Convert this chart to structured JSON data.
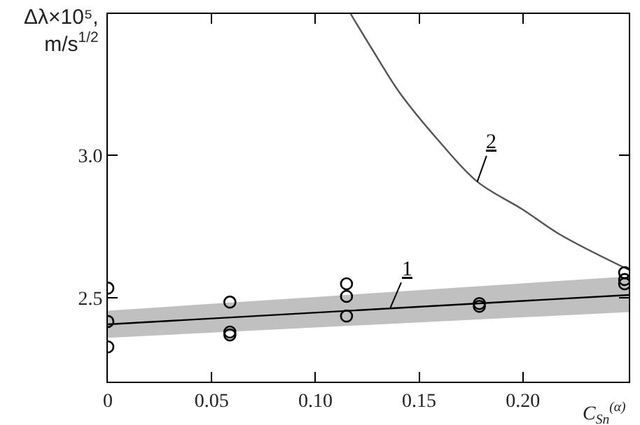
{
  "chart_data": {
    "type": "scatter",
    "xlabel": "C$_{Sn}$$^{(α)}$",
    "ylabel": "Δλ×10⁵,\nm/s$^{1/2}$",
    "xlim": [
      0,
      0.251
    ],
    "ylim": [
      2.206,
      3.495
    ],
    "xticks": [
      0,
      0.05,
      {
        "value": 0.1,
        "label": "0.10"
      },
      0.15,
      {
        "value": 0.2,
        "label": "0.20"
      }
    ],
    "yticks": [
      2.5,
      {
        "value": 3.0,
        "label": "3.0"
      }
    ],
    "series": [
      {
        "type": "line",
        "color": "#000000",
        "x": [
          0,
          0.251
        ],
        "values": [
          2.407,
          2.51
        ],
        "lower": [
          2.36,
          2.45
        ],
        "upper": [
          2.455,
          2.575
        ],
        "marker": "none"
      },
      {
        "type": "line",
        "color": "#555555",
        "x": [
          0.117,
          0.13,
          0.1405,
          0.159,
          0.178,
          0.2,
          0.218,
          0.251
        ],
        "values": [
          3.495,
          3.34,
          3.22,
          3.054,
          2.907,
          2.809,
          2.721,
          2.598
        ],
        "marker": "none"
      },
      {
        "color": "#000000",
        "marker": "circle",
        "x": [
          0,
          0,
          0,
          0.0588,
          0.0588,
          0.0588,
          0.115,
          0.115,
          0.115,
          0.179,
          0.179,
          0.249,
          0.249,
          0.249
        ],
        "values": [
          2.534,
          2.417,
          2.328,
          2.485,
          2.38,
          2.37,
          2.549,
          2.505,
          2.436,
          2.48,
          2.47,
          2.588,
          2.564,
          2.549
        ]
      }
    ],
    "annotations": [
      {
        "text": "1",
        "x": 0.136,
        "y": 2.463
      },
      {
        "text": "2",
        "x": 0.178,
        "y": 2.907
      }
    ]
  }
}
